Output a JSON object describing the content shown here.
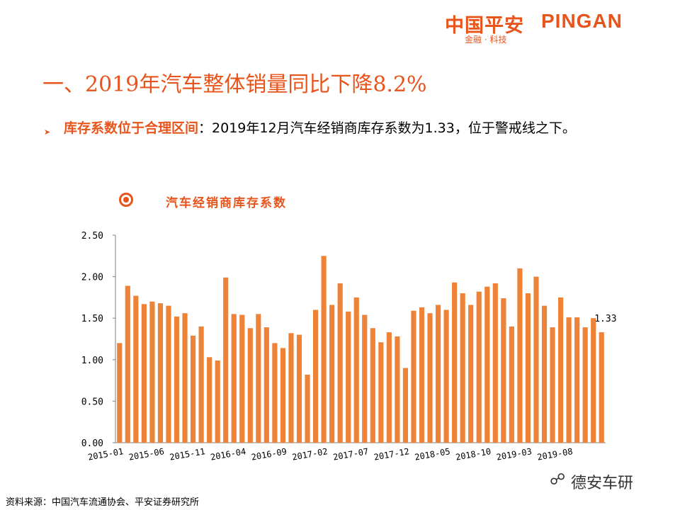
{
  "brand": {
    "logo_cn": "中国平安",
    "logo_en": "PINGAN",
    "tagline": "金融 · 科技",
    "accent_color": "#e8551c"
  },
  "headline": "一、2019年汽车整体销量同比下降8.2%",
  "bullet": {
    "keyword": "库存系数位于合理区间",
    "text": "：2019年12月汽车经销商库存系数为1.33，位于警戒线之下。"
  },
  "chart_data": {
    "type": "bar",
    "title": "汽车经销商库存系数",
    "ylim": [
      0,
      2.5
    ],
    "yticks": [
      "0.00",
      "0.50",
      "1.00",
      "1.50",
      "2.00",
      "2.50"
    ],
    "xticks": [
      "2015-01",
      "2015-06",
      "2015-11",
      "2016-04",
      "2016-09",
      "2017-02",
      "2017-07",
      "2017-12",
      "2018-05",
      "2018-10",
      "2019-03",
      "2019-08"
    ],
    "categories": [
      "2015-01",
      "2015-02",
      "2015-03",
      "2015-04",
      "2015-05",
      "2015-06",
      "2015-07",
      "2015-08",
      "2015-09",
      "2015-10",
      "2015-11",
      "2015-12",
      "2016-01",
      "2016-02",
      "2016-03",
      "2016-04",
      "2016-05",
      "2016-06",
      "2016-07",
      "2016-08",
      "2016-09",
      "2016-10",
      "2016-11",
      "2016-12",
      "2017-01",
      "2017-02",
      "2017-03",
      "2017-04",
      "2017-05",
      "2017-06",
      "2017-07",
      "2017-08",
      "2017-09",
      "2017-10",
      "2017-11",
      "2017-12",
      "2018-01",
      "2018-02",
      "2018-03",
      "2018-04",
      "2018-05",
      "2018-06",
      "2018-07",
      "2018-08",
      "2018-09",
      "2018-10",
      "2018-11",
      "2018-12",
      "2019-01",
      "2019-02",
      "2019-03",
      "2019-04",
      "2019-05",
      "2019-06",
      "2019-07",
      "2019-08",
      "2019-09",
      "2019-10",
      "2019-11",
      "2019-12"
    ],
    "values": [
      1.2,
      1.89,
      1.77,
      1.67,
      1.7,
      1.68,
      1.65,
      1.52,
      1.56,
      1.29,
      1.4,
      1.03,
      0.99,
      1.99,
      1.55,
      1.54,
      1.38,
      1.55,
      1.39,
      1.2,
      1.14,
      1.32,
      1.3,
      0.82,
      1.6,
      2.25,
      1.66,
      1.92,
      1.58,
      1.75,
      1.54,
      1.38,
      1.21,
      1.33,
      1.28,
      0.9,
      1.59,
      1.63,
      1.56,
      1.66,
      1.6,
      1.93,
      1.8,
      1.66,
      1.82,
      1.88,
      1.92,
      1.74,
      1.4,
      2.1,
      1.8,
      2.0,
      1.65,
      1.39,
      1.75,
      1.51,
      1.51,
      1.39,
      1.5,
      1.33
    ],
    "bar_color": "#ee8236",
    "annotation": "1.33",
    "grid": false
  },
  "footer": {
    "source": "资料来源：中国汽车流通协会、平安证券研究所",
    "watermark_icon": "wechat-icon",
    "watermark": "德安车研"
  }
}
